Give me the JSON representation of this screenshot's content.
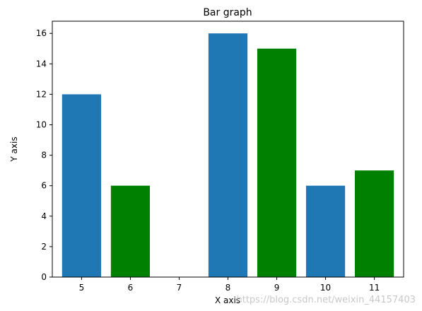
{
  "chart_data": {
    "type": "bar",
    "title": "Bar graph",
    "xlabel": "X axis",
    "ylabel": "Y axis",
    "xlim": [
      4.4,
      11.6
    ],
    "ylim": [
      0,
      16.8
    ],
    "x_ticks": [
      5,
      6,
      7,
      8,
      9,
      10,
      11
    ],
    "y_ticks": [
      0,
      2,
      4,
      6,
      8,
      10,
      12,
      14,
      16
    ],
    "bar_width": 0.8,
    "grid": false,
    "series": [
      {
        "color": "#1f77b4",
        "x": [
          5,
          8,
          10
        ],
        "values": [
          12,
          16,
          6
        ]
      },
      {
        "color": "#008000",
        "x": [
          6,
          9,
          11
        ],
        "values": [
          6,
          15,
          7
        ]
      }
    ]
  },
  "watermark": "https://blog.csdn.net/weixin_44157403"
}
